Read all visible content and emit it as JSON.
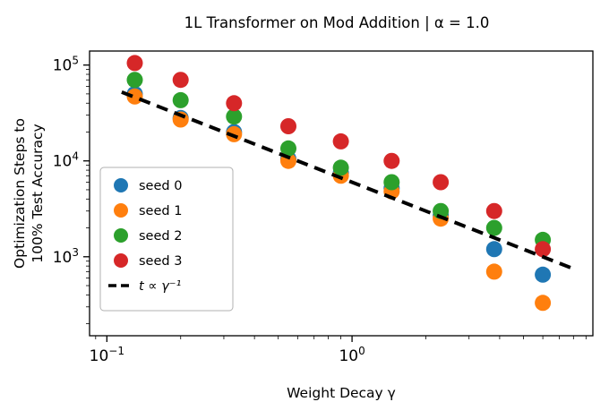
{
  "chart_data": {
    "type": "scatter",
    "title": "1L Transformer on Mod Addition | α = 1.0",
    "xlabel": "Weight Decay γ",
    "ylabel_lines": [
      "Optimization Steps to",
      "100% Test Accuracy"
    ],
    "xscale": "log",
    "yscale": "log",
    "xlim": [
      0.085,
      9.6
    ],
    "ylim": [
      150,
      140000
    ],
    "grid": false,
    "legend_position": "center-left",
    "x": [
      0.13,
      0.2,
      0.33,
      0.55,
      0.9,
      1.45,
      2.3,
      3.8,
      6.0
    ],
    "series": [
      {
        "name": "seed 0",
        "color": "#1f77b4",
        "values": [
          50000,
          28000,
          20000,
          10500,
          7500,
          5200,
          2700,
          1200,
          650
        ]
      },
      {
        "name": "seed 1",
        "color": "#ff7f0e",
        "values": [
          47000,
          27000,
          19000,
          10000,
          7000,
          4800,
          2500,
          700,
          330
        ]
      },
      {
        "name": "seed 2",
        "color": "#2ca02c",
        "values": [
          70000,
          43000,
          29000,
          13500,
          8500,
          6000,
          3000,
          2000,
          1500
        ]
      },
      {
        "name": "seed 3",
        "color": "#d62728",
        "values": [
          105000,
          70000,
          40000,
          23000,
          16000,
          10000,
          6000,
          3000,
          1200
        ]
      }
    ],
    "fit_line": {
      "label": "t ∝ γ⁻¹",
      "coefficient": 6000,
      "exponent": -1,
      "x_range": [
        0.115,
        8.0
      ],
      "color": "#000000",
      "style": "dashed"
    },
    "xticks": [
      {
        "value": 0.1,
        "base": "10",
        "exp": "−1"
      },
      {
        "value": 1,
        "base": "10",
        "exp": "0"
      }
    ],
    "yticks": [
      {
        "value": 1000,
        "base": "10",
        "exp": "3"
      },
      {
        "value": 10000,
        "base": "10",
        "exp": "4"
      },
      {
        "value": 100000,
        "base": "10",
        "exp": "5"
      }
    ]
  }
}
